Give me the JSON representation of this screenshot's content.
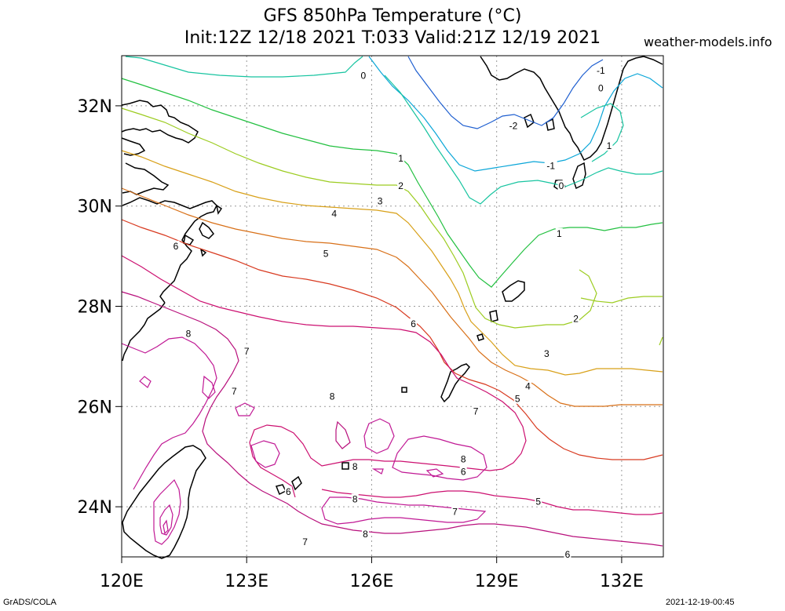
{
  "title": {
    "line1": "GFS 850hPa Temperature (°C)",
    "line2": "Init:12Z 12/18 2021 T:033 Valid:21Z 12/19 2021"
  },
  "site": "weather-models.info",
  "footer": {
    "left": "GrADS/COLA",
    "right": "2021-12-19-00:45"
  },
  "axes": {
    "lon_labels": [
      "120E",
      "123E",
      "126E",
      "129E",
      "132E"
    ],
    "lat_labels": [
      "32N",
      "30N",
      "28N",
      "26N",
      "24N"
    ],
    "lon_range": [
      120,
      133
    ],
    "lat_range": [
      23,
      33
    ]
  },
  "grid": true,
  "colors": {
    "coast": "#000000",
    "grid": "#9a9a9a",
    "contours": {
      "-2": "#1f5fd0",
      "-1": "#0aa6d8",
      "0": "#17c4a0",
      "1": "#22c040",
      "2": "#9ccc20",
      "3": "#d8a018",
      "4": "#d87018",
      "5": "#d83a20",
      "6": "#cc1070",
      "7": "#b8107c",
      "8": "#c01894"
    }
  },
  "contour_labels": [
    {
      "text": "0",
      "lon": 125.8,
      "lat": 32.6
    },
    {
      "text": "-1",
      "lon": 131.5,
      "lat": 32.7
    },
    {
      "text": "0",
      "lon": 131.5,
      "lat": 32.35
    },
    {
      "text": "-2",
      "lon": 129.4,
      "lat": 31.6
    },
    {
      "text": "1",
      "lon": 131.7,
      "lat": 31.2
    },
    {
      "text": "1",
      "lon": 126.7,
      "lat": 30.95
    },
    {
      "text": "-1",
      "lon": 130.3,
      "lat": 30.8
    },
    {
      "text": "2",
      "lon": 126.7,
      "lat": 30.4
    },
    {
      "text": "0",
      "lon": 130.55,
      "lat": 30.4
    },
    {
      "text": "3",
      "lon": 126.2,
      "lat": 30.1
    },
    {
      "text": "4",
      "lon": 125.1,
      "lat": 29.85
    },
    {
      "text": "1",
      "lon": 130.5,
      "lat": 29.45
    },
    {
      "text": "6",
      "lon": 121.3,
      "lat": 29.2
    },
    {
      "text": "5",
      "lon": 124.9,
      "lat": 29.05
    },
    {
      "text": "2",
      "lon": 130.9,
      "lat": 27.75
    },
    {
      "text": "6",
      "lon": 127.0,
      "lat": 27.65
    },
    {
      "text": "8",
      "lon": 121.6,
      "lat": 27.45
    },
    {
      "text": "3",
      "lon": 130.2,
      "lat": 27.05
    },
    {
      "text": "7",
      "lon": 123.0,
      "lat": 27.1
    },
    {
      "text": "4",
      "lon": 129.75,
      "lat": 26.4
    },
    {
      "text": "7",
      "lon": 122.7,
      "lat": 26.3
    },
    {
      "text": "8",
      "lon": 125.05,
      "lat": 26.2
    },
    {
      "text": "5",
      "lon": 129.5,
      "lat": 26.15
    },
    {
      "text": "7",
      "lon": 128.5,
      "lat": 25.9
    },
    {
      "text": "8",
      "lon": 128.2,
      "lat": 24.95
    },
    {
      "text": "8",
      "lon": 125.6,
      "lat": 24.8
    },
    {
      "text": "6",
      "lon": 128.2,
      "lat": 24.7
    },
    {
      "text": "6",
      "lon": 124.0,
      "lat": 24.3
    },
    {
      "text": "8",
      "lon": 125.6,
      "lat": 24.15
    },
    {
      "text": "5",
      "lon": 130.0,
      "lat": 24.1
    },
    {
      "text": "7",
      "lon": 128.0,
      "lat": 23.9
    },
    {
      "text": "8",
      "lon": 125.85,
      "lat": 23.45
    },
    {
      "text": "7",
      "lon": 124.4,
      "lat": 23.3
    },
    {
      "text": "6",
      "lon": 130.7,
      "lat": 23.05
    }
  ]
}
